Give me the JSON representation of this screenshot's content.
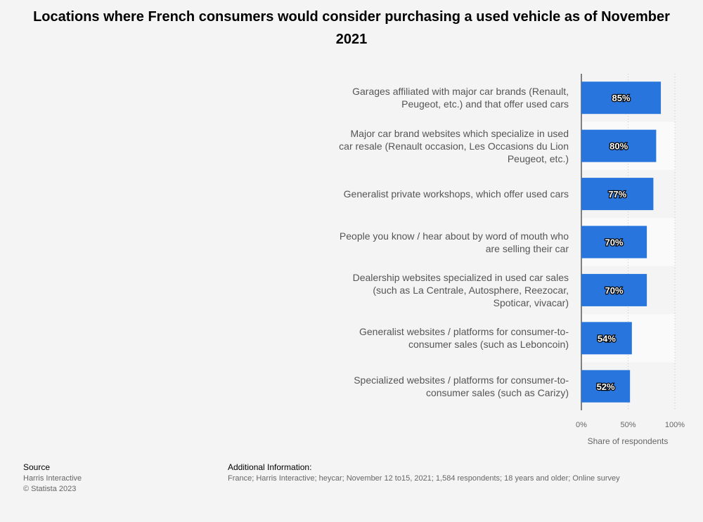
{
  "chart_data": {
    "type": "bar",
    "orientation": "horizontal",
    "title": "Locations where French consumers would consider purchasing a used vehicle as of November 2021",
    "categories": [
      "Garages affiliated with major car brands (Renault, Peugeot, etc.) and that offer used cars",
      "Major car brand websites which specialize in used car resale (Renault occasion, Les Occasions du Lion Peugeot, etc.)",
      "Generalist private workshops, which offer used cars",
      "People you know / hear about by word of mouth who are selling their car",
      "Dealership websites specialized in used car sales (such as La Centrale, Autosphere, Reezocar, Spoticar, vivacar)",
      "Generalist websites / platforms for consumer-to-consumer sales (such as Leboncoin)",
      "Specialized websites / platforms for consumer-to-consumer sales (such as Carizy)"
    ],
    "values": [
      85,
      80,
      77,
      70,
      70,
      54,
      52
    ],
    "value_labels": [
      "85%",
      "80%",
      "77%",
      "70%",
      "70%",
      "54%",
      "52%"
    ],
    "xlabel": "Share of respondents",
    "ylabel": "",
    "xlim": [
      0,
      100
    ],
    "ticks": [
      0,
      50,
      100
    ],
    "tick_labels": [
      "0%",
      "50%",
      "100%"
    ],
    "bar_color": "#2876dd"
  },
  "footer": {
    "source_heading": "Source",
    "source_name": "Harris Interactive",
    "copyright": "© Statista 2023",
    "info_heading": "Additional Information:",
    "info_text": "France; Harris Interactive; heycar; November 12 to15, 2021; 1,584 respondents; 18 years and older; Online survey"
  }
}
